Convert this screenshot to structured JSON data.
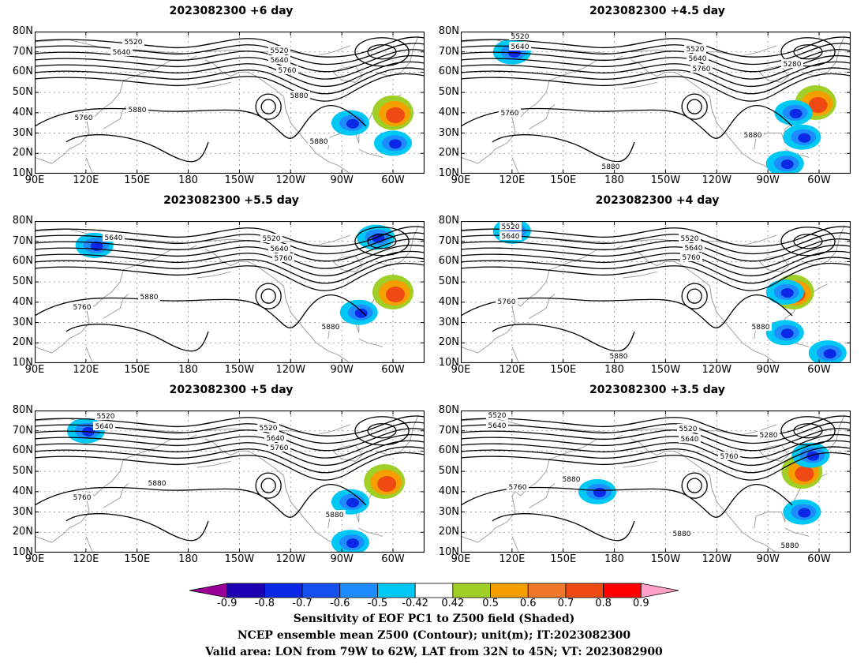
{
  "panels": [
    {
      "title": "2023082300  +6 day",
      "slot": "L1",
      "contour_labels": [
        "5520",
        "5640",
        "5520",
        "5640",
        "5760",
        "5880",
        "5760",
        "5880",
        "5880"
      ],
      "positive_blobs": [
        "60W 40N"
      ],
      "negative_blobs": [
        "85W 35N",
        "60W 25N"
      ]
    },
    {
      "title": "2023082300  +4.5 day",
      "slot": "R1",
      "contour_labels": [
        "5520",
        "5640",
        "5520",
        "5640",
        "5760",
        "5280",
        "5760",
        "5880",
        "5880"
      ],
      "positive_blobs": [
        "62W 45N"
      ],
      "negative_blobs": [
        "120E 70N",
        "75W 40N",
        "70W 28N",
        "80W 15N"
      ]
    },
    {
      "title": "2023082300  +5.5 day",
      "slot": "L2",
      "contour_labels": [
        "5640",
        "5520",
        "5640",
        "5760",
        "5760",
        "5880",
        "5880"
      ],
      "positive_blobs": [
        "60W 45N"
      ],
      "negative_blobs": [
        "125E 68N",
        "80W 35N",
        "70W 72N"
      ]
    },
    {
      "title": "2023082300  +4 day",
      "slot": "R2",
      "contour_labels": [
        "5520",
        "5640",
        "5520",
        "5640",
        "5760",
        "5760",
        "5880",
        "5880"
      ],
      "positive_blobs": [
        "75W 45N"
      ],
      "negative_blobs": [
        "120E 75N",
        "80W 45N",
        "80W 25N",
        "55W 15N"
      ]
    },
    {
      "title": "2023082300  +5 day",
      "slot": "L3",
      "contour_labels": [
        "5520",
        "5640",
        "5520",
        "5640",
        "5760",
        "5760",
        "5880",
        "5880"
      ],
      "positive_blobs": [
        "65W 45N"
      ],
      "negative_blobs": [
        "120E 70N",
        "85W 35N",
        "85W 15N"
      ]
    },
    {
      "title": "2023082300  +3.5 day",
      "slot": "R3",
      "contour_labels": [
        "5520",
        "5640",
        "5520",
        "5640",
        "5280",
        "5760",
        "5880",
        "5760",
        "5880",
        "5880"
      ],
      "positive_blobs": [
        "70W 50N"
      ],
      "negative_blobs": [
        "70W 30N",
        "170E 40N",
        "65W 58N"
      ]
    }
  ],
  "axes": {
    "lat_ticks": [
      "80N",
      "70N",
      "60N",
      "50N",
      "40N",
      "30N",
      "20N",
      "10N"
    ],
    "lon_ticks": [
      "90E",
      "120E",
      "150E",
      "180",
      "150W",
      "120W",
      "90W",
      "60W"
    ]
  },
  "colorbar": {
    "labels": [
      "-0.9",
      "-0.8",
      "-0.7",
      "-0.6",
      "-0.5",
      "-0.42",
      "0.42",
      "0.5",
      "0.6",
      "0.7",
      "0.8",
      "0.9"
    ],
    "colors": [
      "#9a0096",
      "#1e00b4",
      "#0a28e6",
      "#1450f0",
      "#1e8cff",
      "#00c8f5",
      "#ffffff",
      "#a0d028",
      "#f5a000",
      "#f07828",
      "#f04a14",
      "#ff0000",
      "#ffa0c8"
    ]
  },
  "footer": {
    "line1": "Sensitivity of EOF PC1 to Z500 field (Shaded)",
    "line2": "NCEP ensemble mean Z500 (Contour); unit(m); IT:2023082300",
    "line3": "Valid area: LON from 79W to 62W, LAT from 32N to 45N; VT: 2023082900"
  }
}
